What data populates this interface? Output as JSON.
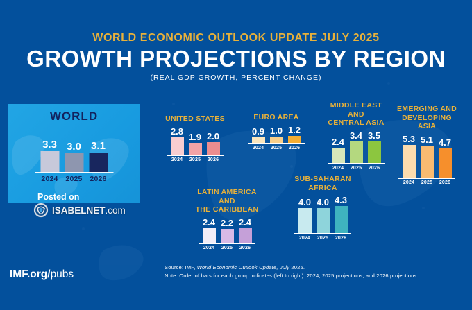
{
  "header": {
    "eyebrow": "WORLD ECONOMIC OUTLOOK UPDATE JULY 2025",
    "title": "GROWTH PROJECTIONS BY REGION",
    "subtitle": "(REAL GDP GROWTH, PERCENT CHANGE)"
  },
  "world_panel": {
    "title": "WORLD",
    "posted_on": "Posted on"
  },
  "watermark": {
    "brand": "ISABELNET",
    "domain": ".com"
  },
  "chart_data": {
    "type": "bar",
    "title": "GROWTH PROJECTIONS BY REGION",
    "subtitle": "REAL GDP GROWTH, PERCENT CHANGE",
    "categories": [
      "2024",
      "2025",
      "2026"
    ],
    "ylim": [
      0,
      5.5
    ],
    "grid": false,
    "legend": "none",
    "series": [
      {
        "name": "WORLD",
        "values": [
          3.3,
          3.0,
          3.1
        ],
        "colors": [
          "#c7c9da",
          "#8e96af",
          "#18265e"
        ]
      },
      {
        "name": "UNITED STATES",
        "label_lines": [
          "UNITED STATES"
        ],
        "values": [
          2.8,
          1.9,
          2.0
        ],
        "colors": [
          "#f8cdd0",
          "#f2a3a6",
          "#eb8d8f"
        ]
      },
      {
        "name": "EURO AREA",
        "label_lines": [
          "EURO AREA"
        ],
        "values": [
          0.9,
          1.0,
          1.2
        ],
        "colors": [
          "#fbe6bd",
          "#f9cf8a",
          "#f5ae33"
        ]
      },
      {
        "name": "MIDDLE EAST AND CENTRAL ASIA",
        "label_lines": [
          "MIDDLE EAST AND",
          "CENTRAL ASIA"
        ],
        "values": [
          2.4,
          3.4,
          3.5
        ],
        "colors": [
          "#d7e7ba",
          "#b4d87f",
          "#8cc63f"
        ]
      },
      {
        "name": "EMERGING AND DEVELOPING ASIA",
        "label_lines": [
          "EMERGING AND",
          "DEVELOPING ASIA"
        ],
        "values": [
          5.3,
          5.1,
          4.7
        ],
        "colors": [
          "#fcdcae",
          "#f9bb71",
          "#f68f2c"
        ]
      },
      {
        "name": "LATIN AMERICA AND THE CARIBBEAN",
        "label_lines": [
          "LATIN AMERICA AND",
          "THE CARIBBEAN"
        ],
        "values": [
          2.4,
          2.2,
          2.4
        ],
        "colors": [
          "#f1edf7",
          "#d8bae6",
          "#c5a0d8"
        ]
      },
      {
        "name": "SUB-SAHARAN AFRICA",
        "label_lines": [
          "SUB-SAHARAN AFRICA"
        ],
        "values": [
          4.0,
          4.0,
          4.3
        ],
        "colors": [
          "#c8eaef",
          "#8ed4db",
          "#3fb3bf"
        ]
      }
    ]
  },
  "footer": {
    "site_bold": "IMF.org/",
    "site_light": "pubs",
    "source_prefix": "Source: IMF, ",
    "source_italic": "World Economic Outlook Update, July",
    "source_suffix": " 2025.",
    "note": "Note:  Order of bars for each group indicates (left to right): 2024, 2025 projections, and 2026 projections."
  }
}
